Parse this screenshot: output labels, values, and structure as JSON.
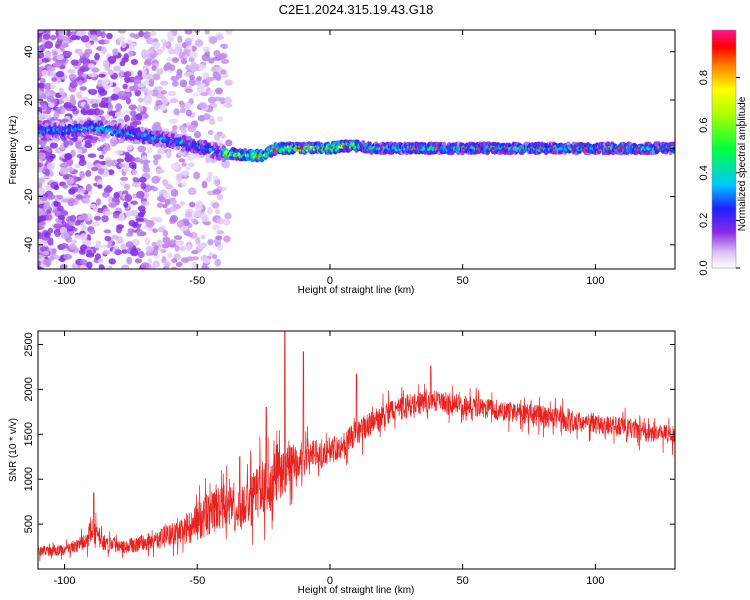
{
  "title": "C2E1.2024.315.19.43.G18",
  "chart_data": [
    {
      "type": "heatmap",
      "xlabel": "Height of straight line (km)",
      "ylabel": "Frequency (Hz)",
      "xlim": [
        -110,
        130
      ],
      "ylim": [
        -50,
        49
      ],
      "xticks": [
        -100,
        -50,
        0,
        50,
        100
      ],
      "yticks": [
        -40,
        -20,
        0,
        20,
        40
      ],
      "colorbar": {
        "label": "Normalized spectral amplitude",
        "ticks": [
          0.0,
          0.2,
          0.4,
          0.6,
          0.8
        ],
        "range": [
          0,
          1
        ]
      },
      "ridge": {
        "x": [
          -110,
          -100,
          -90,
          -80,
          -70,
          -60,
          -50,
          -40,
          -30,
          -25,
          -20,
          -10,
          0,
          5,
          10,
          15,
          20,
          50,
          100,
          130
        ],
        "freq": [
          8,
          7,
          9,
          7,
          5,
          3,
          1,
          -2,
          -3,
          -3,
          0,
          0,
          0,
          1,
          1,
          0,
          0,
          0,
          0,
          0
        ]
      },
      "grid": false
    },
    {
      "type": "line",
      "xlabel": "Height of straight line (km)",
      "ylabel": "SNR (10 * v/v)",
      "xlim": [
        -110,
        130
      ],
      "ylim": [
        0,
        2650
      ],
      "xticks": [
        -100,
        -50,
        0,
        50,
        100
      ],
      "yticks": [
        500,
        1000,
        1500,
        2000,
        2500
      ],
      "color": "#e8221f",
      "envelope": {
        "x": [
          -110,
          -100,
          -92,
          -90,
          -85,
          -75,
          -65,
          -55,
          -50,
          -45,
          -40,
          -35,
          -30,
          -25,
          -20,
          -15,
          -10,
          -5,
          0,
          5,
          10,
          15,
          20,
          25,
          30,
          35,
          40,
          45,
          50,
          60,
          70,
          80,
          90,
          100,
          110,
          120,
          130
        ],
        "mean": [
          200,
          210,
          300,
          450,
          290,
          260,
          330,
          420,
          520,
          620,
          700,
          650,
          750,
          900,
          1000,
          1150,
          1250,
          1300,
          1320,
          1380,
          1500,
          1620,
          1700,
          1780,
          1820,
          1850,
          1870,
          1860,
          1820,
          1780,
          1740,
          1700,
          1650,
          1620,
          1580,
          1520,
          1480
        ],
        "spread": [
          100,
          100,
          150,
          250,
          160,
          140,
          180,
          250,
          350,
          400,
          420,
          380,
          500,
          550,
          500,
          400,
          300,
          250,
          250,
          250,
          250,
          230,
          220,
          230,
          220,
          200,
          200,
          200,
          190,
          190,
          190,
          200,
          200,
          190,
          190,
          180,
          180
        ]
      },
      "spikes": [
        {
          "x": -89,
          "y": 850
        },
        {
          "x": -34,
          "y": 1250
        },
        {
          "x": -24,
          "y": 1800
        },
        {
          "x": -17,
          "y": 2650
        },
        {
          "x": -10,
          "y": 2420
        },
        {
          "x": 10,
          "y": 2170
        },
        {
          "x": 38,
          "y": 2260
        }
      ],
      "grid": false
    }
  ]
}
